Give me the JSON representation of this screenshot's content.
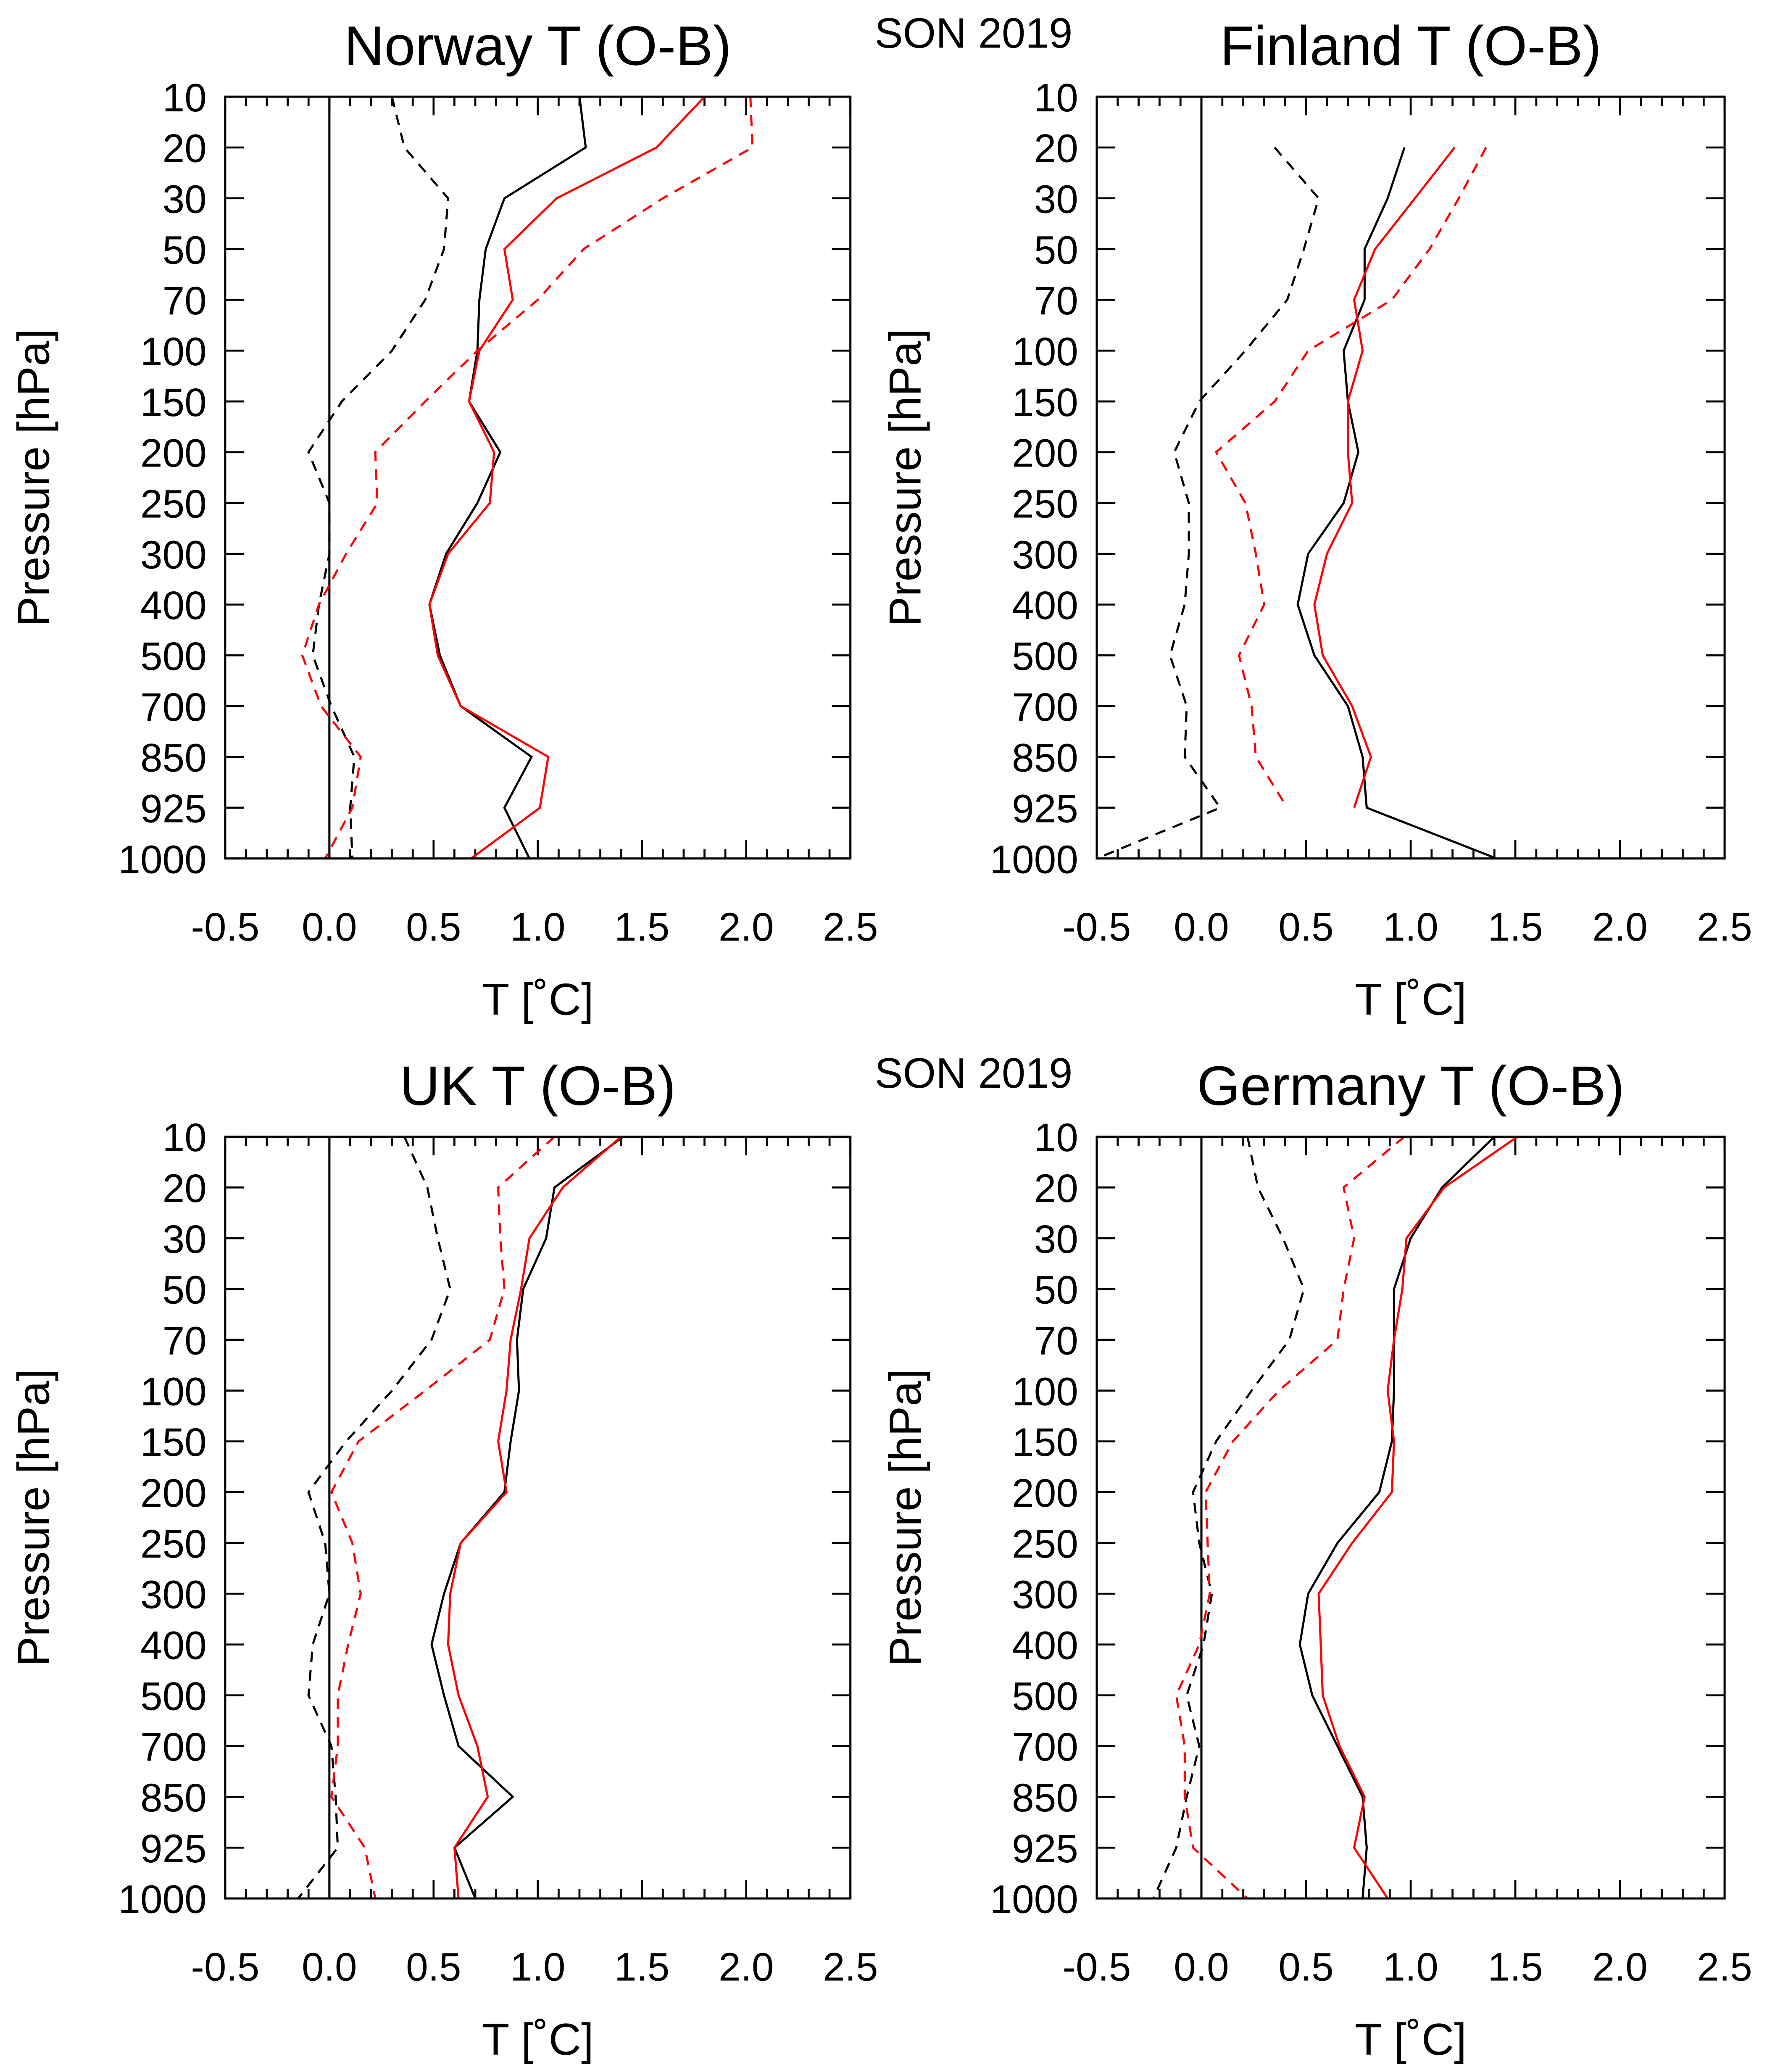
{
  "suptitle": "SON 2019",
  "chart_data": [
    {
      "type": "line",
      "title": "Norway T (O-B)",
      "xlabel": "T [˚C]",
      "ylabel": "Pressure [hPa]",
      "xlim": [
        -0.5,
        2.5
      ],
      "xticks": [
        "-0.5",
        "0.0",
        "0.5",
        "1.0",
        "1.5",
        "2.0",
        "2.5"
      ],
      "levels": [
        "10",
        "20",
        "30",
        "50",
        "70",
        "100",
        "150",
        "200",
        "250",
        "300",
        "400",
        "500",
        "700",
        "850",
        "925",
        "1000"
      ],
      "series": [
        {
          "name": "black solid",
          "color": "#000000",
          "dash": false,
          "values": [
            1.2,
            1.23,
            0.84,
            0.75,
            0.72,
            0.71,
            0.67,
            0.82,
            0.71,
            0.56,
            0.48,
            0.53,
            0.63,
            0.97,
            0.84,
            0.96
          ]
        },
        {
          "name": "red solid",
          "color": "#ff0000",
          "dash": false,
          "values": [
            1.8,
            1.57,
            1.09,
            0.84,
            0.88,
            0.72,
            0.67,
            0.79,
            0.77,
            0.57,
            0.48,
            0.52,
            0.63,
            1.05,
            1.01,
            0.68
          ]
        },
        {
          "name": "black dashed",
          "color": "#000000",
          "dash": true,
          "values": [
            0.3,
            0.36,
            0.57,
            0.55,
            0.46,
            0.3,
            0.06,
            -0.1,
            0.0,
            0.0,
            -0.05,
            -0.08,
            0.01,
            0.12,
            0.1,
            0.11
          ]
        },
        {
          "name": "red dashed",
          "color": "#ff0000",
          "dash": true,
          "values": [
            2.02,
            2.03,
            1.6,
            1.22,
            1.0,
            0.71,
            0.46,
            0.22,
            0.23,
            0.08,
            -0.05,
            -0.13,
            -0.04,
            0.15,
            0.11,
            -0.02
          ]
        }
      ]
    },
    {
      "type": "line",
      "title": "Finland T (O-B)",
      "xlabel": "T [˚C]",
      "ylabel": "Pressure [hPa]",
      "xlim": [
        -0.5,
        2.5
      ],
      "xticks": [
        "-0.5",
        "0.0",
        "0.5",
        "1.0",
        "1.5",
        "2.0",
        "2.5"
      ],
      "levels": [
        "10",
        "20",
        "30",
        "50",
        "70",
        "100",
        "150",
        "200",
        "250",
        "300",
        "400",
        "500",
        "700",
        "850",
        "925",
        "1000"
      ],
      "series": [
        {
          "name": "black solid",
          "color": "#000000",
          "dash": false,
          "values": [
            null,
            0.97,
            0.89,
            0.78,
            0.78,
            0.68,
            0.7,
            0.75,
            0.68,
            0.51,
            0.46,
            0.54,
            0.7,
            0.77,
            0.79,
            1.41
          ]
        },
        {
          "name": "red solid",
          "color": "#ff0000",
          "dash": false,
          "values": [
            null,
            1.21,
            1.02,
            0.83,
            0.73,
            0.77,
            0.7,
            0.7,
            0.72,
            0.6,
            0.54,
            0.58,
            0.72,
            0.81,
            0.73,
            null
          ]
        },
        {
          "name": "black dashed",
          "color": "#000000",
          "dash": true,
          "values": [
            null,
            0.35,
            0.56,
            0.49,
            0.41,
            0.21,
            -0.01,
            -0.13,
            -0.06,
            -0.06,
            -0.08,
            -0.15,
            -0.07,
            -0.08,
            0.09,
            -0.5
          ]
        },
        {
          "name": "red dashed",
          "color": "#ff0000",
          "dash": true,
          "values": [
            null,
            1.36,
            1.23,
            1.09,
            0.91,
            0.51,
            0.35,
            0.07,
            0.21,
            0.26,
            0.3,
            0.18,
            0.24,
            0.26,
            0.41,
            null
          ]
        }
      ]
    },
    {
      "type": "line",
      "title": "UK T (O-B)",
      "xlabel": "T [˚C]",
      "ylabel": "Pressure [hPa]",
      "xlim": [
        -0.5,
        2.5
      ],
      "xticks": [
        "-0.5",
        "0.0",
        "0.5",
        "1.0",
        "1.5",
        "2.0",
        "2.5"
      ],
      "levels": [
        "10",
        "20",
        "30",
        "50",
        "70",
        "100",
        "150",
        "200",
        "250",
        "300",
        "400",
        "500",
        "700",
        "850",
        "925",
        "1000"
      ],
      "series": [
        {
          "name": "black solid",
          "color": "#000000",
          "dash": false,
          "values": [
            1.41,
            1.08,
            1.04,
            0.93,
            0.9,
            0.91,
            0.87,
            0.84,
            0.63,
            0.55,
            0.49,
            0.55,
            0.62,
            0.88,
            0.6,
            0.7
          ]
        },
        {
          "name": "red solid",
          "color": "#ff0000",
          "dash": false,
          "values": [
            1.4,
            1.12,
            0.96,
            0.92,
            0.87,
            0.85,
            0.81,
            0.85,
            0.63,
            0.58,
            0.57,
            0.62,
            0.71,
            0.76,
            0.6,
            0.62
          ]
        },
        {
          "name": "black dashed",
          "color": "#000000",
          "dash": true,
          "values": [
            0.36,
            0.47,
            0.52,
            0.58,
            0.49,
            0.3,
            0.08,
            -0.1,
            -0.02,
            0.0,
            -0.08,
            -0.1,
            0.01,
            0.03,
            0.04,
            -0.15
          ]
        },
        {
          "name": "red dashed",
          "color": "#ff0000",
          "dash": true,
          "values": [
            1.08,
            0.81,
            0.82,
            0.84,
            0.77,
            0.46,
            0.14,
            0.01,
            0.11,
            0.15,
            0.09,
            0.04,
            0.04,
            0.01,
            0.17,
            0.22
          ]
        }
      ]
    },
    {
      "type": "line",
      "title": "Germany T (O-B)",
      "xlabel": "T [˚C]",
      "ylabel": "Pressure [hPa]",
      "xlim": [
        -0.5,
        2.5
      ],
      "xticks": [
        "-0.5",
        "0.0",
        "0.5",
        "1.0",
        "1.5",
        "2.0",
        "2.5"
      ],
      "levels": [
        "10",
        "20",
        "30",
        "50",
        "70",
        "100",
        "150",
        "200",
        "250",
        "300",
        "400",
        "500",
        "700",
        "850",
        "925",
        "1000"
      ],
      "series": [
        {
          "name": "black solid",
          "color": "#000000",
          "dash": false,
          "values": [
            1.4,
            1.15,
            1.0,
            0.92,
            0.92,
            0.92,
            0.91,
            0.85,
            0.65,
            0.51,
            0.47,
            0.53,
            0.65,
            0.77,
            0.79,
            0.77
          ]
        },
        {
          "name": "red solid",
          "color": "#ff0000",
          "dash": false,
          "values": [
            1.51,
            1.16,
            0.98,
            0.96,
            0.92,
            0.89,
            0.92,
            0.91,
            0.72,
            0.56,
            0.57,
            0.58,
            0.66,
            0.78,
            0.73,
            0.89
          ]
        },
        {
          "name": "black dashed",
          "color": "#000000",
          "dash": true,
          "values": [
            0.22,
            0.27,
            0.39,
            0.49,
            0.42,
            0.24,
            0.07,
            -0.04,
            -0.01,
            0.05,
            0.01,
            -0.07,
            -0.01,
            -0.07,
            -0.12,
            -0.23
          ]
        },
        {
          "name": "red dashed",
          "color": "#ff0000",
          "dash": true,
          "values": [
            0.97,
            0.68,
            0.73,
            0.68,
            0.65,
            0.37,
            0.15,
            0.02,
            0.03,
            0.04,
            -0.01,
            -0.12,
            -0.08,
            -0.08,
            -0.04,
            0.22
          ]
        }
      ]
    }
  ]
}
